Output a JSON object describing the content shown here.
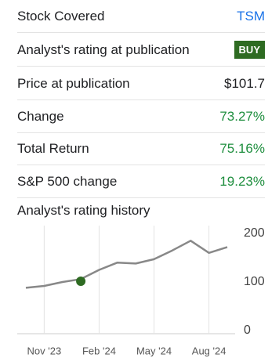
{
  "table": {
    "rows": [
      [
        "Stock Covered",
        "TSM"
      ],
      [
        "Analyst's rating at publication",
        "BUY"
      ],
      [
        "Price at publication",
        "$101.7"
      ],
      [
        "Change",
        "73.27%"
      ],
      [
        "Total Return",
        "75.16%"
      ],
      [
        "S&P 500 change",
        "19.23%"
      ]
    ]
  },
  "chart_data": {
    "type": "line",
    "title": "Analyst's rating history",
    "x": [
      "2023-10",
      "2023-11",
      "2023-12",
      "2024-01",
      "2024-02",
      "2024-03",
      "2024-04",
      "2024-05",
      "2024-06",
      "2024-07",
      "2024-08",
      "2024-09"
    ],
    "series": [
      {
        "name": "TSM",
        "color": "#888888",
        "values": [
          88,
          92,
          100,
          106,
          125,
          140,
          138,
          147,
          165,
          185,
          160,
          172
        ]
      }
    ],
    "marker": {
      "x": "2024-01",
      "value": 101.7,
      "color": "#2e6b22"
    },
    "xlim": [
      "2023-10",
      "2024-09"
    ],
    "xticks": [
      {
        "value": "2023-11",
        "label": "Nov '23"
      },
      {
        "value": "2024-02",
        "label": "Feb '24"
      },
      {
        "value": "2024-05",
        "label": "May '24"
      },
      {
        "value": "2024-08",
        "label": "Aug '24"
      }
    ],
    "ylim": [
      0,
      200
    ],
    "yticks": [
      0,
      100,
      200
    ],
    "grid": true
  }
}
